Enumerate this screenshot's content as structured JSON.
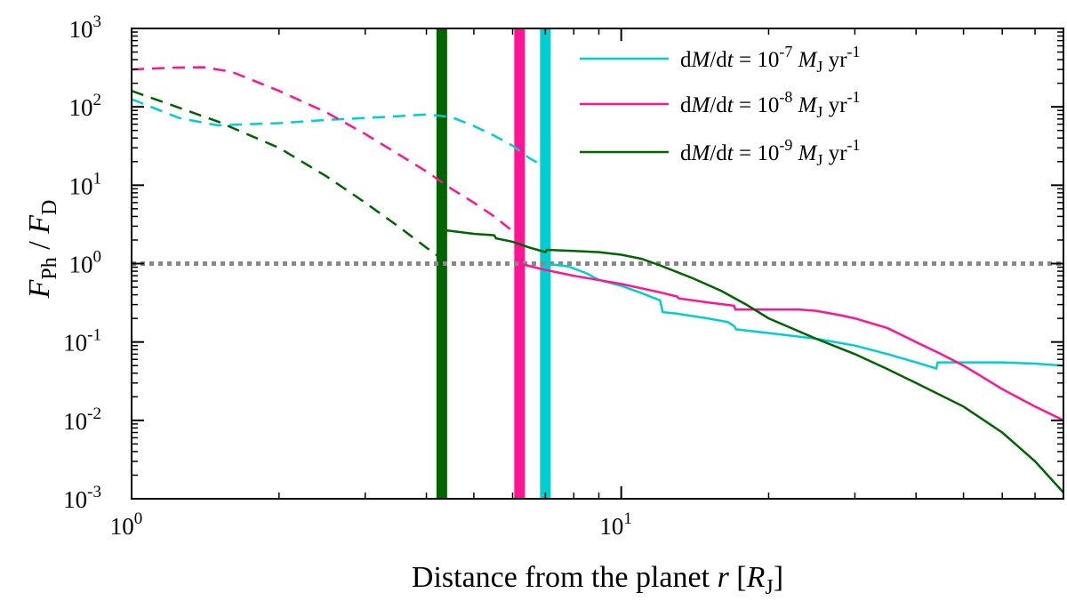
{
  "chart_data": {
    "type": "line",
    "xscale": "log",
    "yscale": "log",
    "xlim": [
      1,
      80
    ],
    "ylim": [
      0.001,
      1000
    ],
    "xlabel": {
      "main": "Distance from the planet ",
      "var": "r",
      "open": " [",
      "sym": "R",
      "sub": "J",
      "close": "]"
    },
    "ylabel": {
      "num": "F",
      "num_sub": "Ph",
      "sep": " / ",
      "den": "F",
      "den_sub": "D"
    },
    "xticks": [
      {
        "value": 1,
        "base": "10",
        "exp": "0"
      },
      {
        "value": 10,
        "base": "10",
        "exp": "1"
      }
    ],
    "yticks": [
      {
        "value": 0.001,
        "base": "10",
        "exp": "-3"
      },
      {
        "value": 0.01,
        "base": "10",
        "exp": "-2"
      },
      {
        "value": 0.1,
        "base": "10",
        "exp": "-1"
      },
      {
        "value": 1,
        "base": "10",
        "exp": "0"
      },
      {
        "value": 10,
        "base": "10",
        "exp": "1"
      },
      {
        "value": 100,
        "base": "10",
        "exp": "2"
      },
      {
        "value": 1000,
        "base": "10",
        "exp": "3"
      }
    ],
    "reference_line": {
      "y": 1,
      "style": "dotted",
      "color": "#888888"
    },
    "vertical_bands": [
      {
        "x": 4.3,
        "color": "#006400",
        "series": "1e-9"
      },
      {
        "x": 6.2,
        "color": "#ff1493",
        "series": "1e-8"
      },
      {
        "x": 7.0,
        "color": "#00ced1",
        "series": "1e-7"
      }
    ],
    "series": [
      {
        "name": "dM/dt = 10^-7 MJ yr^-1",
        "legend": {
          "prefix": "d",
          "m": "M",
          "slash": "/d",
          "t": "t",
          "eq": " = 10",
          "exp": "-7",
          "sym": " M",
          "sub": "J",
          "unit": " yr",
          "uexp": "-1"
        },
        "color": "#00ced1",
        "dashed": [
          [
            1.0,
            125
          ],
          [
            1.25,
            72
          ],
          [
            1.5,
            58
          ],
          [
            2.0,
            62
          ],
          [
            2.5,
            68
          ],
          [
            3.0,
            72
          ],
          [
            3.5,
            76
          ],
          [
            4.0,
            80
          ],
          [
            4.5,
            74
          ],
          [
            5.0,
            57
          ],
          [
            5.5,
            43
          ],
          [
            6.0,
            32
          ],
          [
            6.5,
            22
          ],
          [
            7.0,
            17
          ]
        ],
        "solid": [
          [
            7.0,
            1.0
          ],
          [
            7.3,
            0.97
          ],
          [
            7.8,
            0.92
          ],
          [
            8.5,
            0.75
          ],
          [
            9.0,
            0.62
          ],
          [
            10.0,
            0.52
          ],
          [
            11.0,
            0.42
          ],
          [
            12.0,
            0.34
          ],
          [
            12.15,
            0.24
          ],
          [
            13.0,
            0.23
          ],
          [
            15.0,
            0.2
          ],
          [
            16.5,
            0.18
          ],
          [
            17.0,
            0.16
          ],
          [
            17.15,
            0.145
          ],
          [
            20.0,
            0.13
          ],
          [
            25.0,
            0.11
          ],
          [
            30.0,
            0.09
          ],
          [
            35.0,
            0.07
          ],
          [
            40.0,
            0.055
          ],
          [
            44.0,
            0.046
          ],
          [
            44.3,
            0.055
          ],
          [
            50.0,
            0.055
          ],
          [
            60.0,
            0.055
          ],
          [
            70.0,
            0.053
          ],
          [
            80.0,
            0.05
          ]
        ]
      },
      {
        "name": "dM/dt = 10^-8 MJ yr^-1",
        "legend": {
          "prefix": "d",
          "m": "M",
          "slash": "/d",
          "t": "t",
          "eq": " = 10",
          "exp": "-8",
          "sym": " M",
          "sub": "J",
          "unit": " yr",
          "uexp": "-1"
        },
        "color": "#ff1493",
        "dashed": [
          [
            1.0,
            300
          ],
          [
            1.2,
            315
          ],
          [
            1.4,
            320
          ],
          [
            1.6,
            280
          ],
          [
            2.0,
            160
          ],
          [
            2.5,
            85
          ],
          [
            3.0,
            45
          ],
          [
            3.5,
            25
          ],
          [
            4.0,
            15
          ],
          [
            4.5,
            9
          ],
          [
            5.0,
            6
          ],
          [
            5.5,
            4
          ],
          [
            6.0,
            2.6
          ],
          [
            6.2,
            2.3
          ]
        ],
        "solid": [
          [
            6.2,
            1.0
          ],
          [
            7.0,
            0.83
          ],
          [
            8.0,
            0.7
          ],
          [
            10.0,
            0.55
          ],
          [
            12.0,
            0.43
          ],
          [
            13.0,
            0.38
          ],
          [
            13.1,
            0.36
          ],
          [
            15.0,
            0.32
          ],
          [
            17.0,
            0.29
          ],
          [
            17.1,
            0.26
          ],
          [
            20.0,
            0.26
          ],
          [
            23.0,
            0.26
          ],
          [
            25.0,
            0.25
          ],
          [
            28.0,
            0.22
          ],
          [
            30.0,
            0.2
          ],
          [
            35.0,
            0.15
          ],
          [
            40.0,
            0.1
          ],
          [
            45.0,
            0.07
          ],
          [
            50.0,
            0.05
          ],
          [
            55.0,
            0.035
          ],
          [
            60.0,
            0.025
          ],
          [
            70.0,
            0.015
          ],
          [
            80.0,
            0.01
          ]
        ]
      },
      {
        "name": "dM/dt = 10^-9 MJ yr^-1",
        "legend": {
          "prefix": "d",
          "m": "M",
          "slash": "/d",
          "t": "t",
          "eq": " = 10",
          "exp": "-9",
          "sym": " M",
          "sub": "J",
          "unit": " yr",
          "uexp": "-1"
        },
        "color": "#006400",
        "dashed": [
          [
            1.0,
            160
          ],
          [
            1.5,
            65
          ],
          [
            2.0,
            30
          ],
          [
            2.5,
            13
          ],
          [
            3.0,
            6
          ],
          [
            3.5,
            3
          ],
          [
            4.0,
            1.6
          ],
          [
            4.3,
            1.15
          ]
        ],
        "solid": [
          [
            4.3,
            2.7
          ],
          [
            5.0,
            2.4
          ],
          [
            5.5,
            2.3
          ],
          [
            5.55,
            2.1
          ],
          [
            6.0,
            1.9
          ],
          [
            6.5,
            1.6
          ],
          [
            7.0,
            1.4
          ],
          [
            7.05,
            1.5
          ],
          [
            8.0,
            1.45
          ],
          [
            9.0,
            1.4
          ],
          [
            10.0,
            1.3
          ],
          [
            11.0,
            1.15
          ],
          [
            12.0,
            0.95
          ],
          [
            14.0,
            0.65
          ],
          [
            16.0,
            0.45
          ],
          [
            18.0,
            0.3
          ],
          [
            20.0,
            0.2
          ],
          [
            25.0,
            0.11
          ],
          [
            30.0,
            0.07
          ],
          [
            35.0,
            0.045
          ],
          [
            40.0,
            0.03
          ],
          [
            50.0,
            0.015
          ],
          [
            60.0,
            0.007
          ],
          [
            70.0,
            0.003
          ],
          [
            80.0,
            0.0012
          ]
        ]
      }
    ]
  }
}
